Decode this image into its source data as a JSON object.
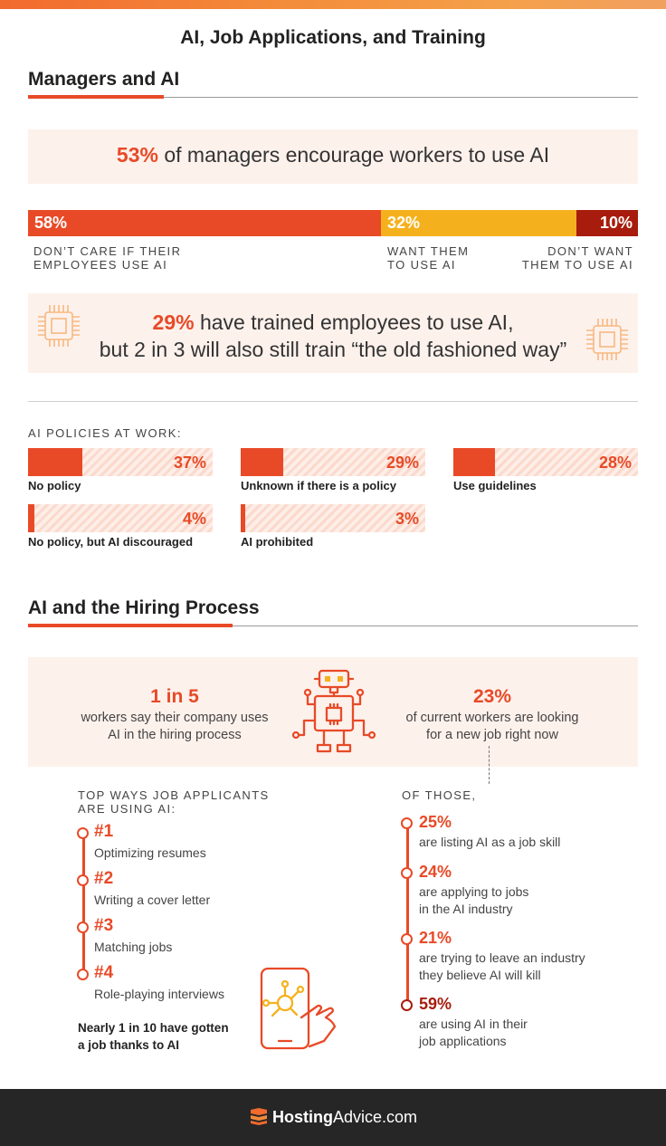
{
  "title": "AI, Job Applications, and Training",
  "colors": {
    "accent": "#e84a27",
    "yellow": "#f5b11d",
    "dark_red": "#a71c0c",
    "pink_bg": "#fdf1ec",
    "footer_bg": "#262626"
  },
  "managers": {
    "heading": "Managers and AI",
    "encourage": {
      "pct": "53%",
      "text": "of managers encourage workers to use AI"
    },
    "breakdown": [
      {
        "pct": "58%",
        "value": 58,
        "label_line1": "DON’T CARE IF THEIR",
        "label_line2": "EMPLOYEES USE AI",
        "color": "#e84a27"
      },
      {
        "pct": "32%",
        "value": 32,
        "label_line1": "WANT THEM",
        "label_line2": "TO USE AI",
        "color": "#f5b11d"
      },
      {
        "pct": "10%",
        "value": 10,
        "label_line1": "DON’T WANT",
        "label_line2": "THEM TO USE AI",
        "color": "#a71c0c"
      }
    ],
    "trained": {
      "pct": "29%",
      "line1": "have trained employees to use AI,",
      "line2": "but 2 in 3 will also still train “the old fashioned way”"
    },
    "chip_icon": "circuit-chip-icon"
  },
  "policies": {
    "heading": "AI POLICIES AT WORK:",
    "items": [
      {
        "label": "No policy",
        "pct": "37%",
        "value": 37
      },
      {
        "label": "Unknown if there is a policy",
        "pct": "29%",
        "value": 29
      },
      {
        "label": "Use guidelines",
        "pct": "28%",
        "value": 28
      },
      {
        "label": "No policy, but AI discouraged",
        "pct": "4%",
        "value": 4
      },
      {
        "label": "AI prohibited",
        "pct": "3%",
        "value": 3
      }
    ]
  },
  "hiring": {
    "heading": "AI and the Hiring Process",
    "left_stat": {
      "big": "1 in 5",
      "line1": "workers say their company uses",
      "line2": "AI in the hiring process"
    },
    "right_stat": {
      "big": "23%",
      "line1": "of current workers are looking",
      "line2": "for a new job right now"
    },
    "robot_icon": "robot-icon",
    "top_ways": {
      "heading_line1": "TOP WAYS JOB APPLICANTS",
      "heading_line2": "ARE USING AI:",
      "items": [
        {
          "rank": "#1",
          "text": "Optimizing resumes"
        },
        {
          "rank": "#2",
          "text": "Writing a cover letter"
        },
        {
          "rank": "#3",
          "text": "Matching jobs"
        },
        {
          "rank": "#4",
          "text": "Role-playing interviews"
        }
      ],
      "note_line1": "Nearly 1 in 10 have gotten",
      "note_line2": "a job thanks to AI",
      "phone_icon": "phone-touch-icon"
    },
    "of_those": {
      "heading": "OF THOSE,",
      "items": [
        {
          "pct": "25%",
          "line1": "are listing AI as a job skill",
          "line2": ""
        },
        {
          "pct": "24%",
          "line1": "are applying to jobs",
          "line2": "in the AI industry"
        },
        {
          "pct": "21%",
          "line1": "are trying to leave an industry",
          "line2": "they believe AI will kill"
        },
        {
          "pct": "59%",
          "line1": "are using AI in their",
          "line2": "job applications"
        }
      ]
    }
  },
  "footer": {
    "brand_part1": "Hosting",
    "brand_part2": "Advice.com",
    "logo_icon": "server-logo-icon"
  }
}
